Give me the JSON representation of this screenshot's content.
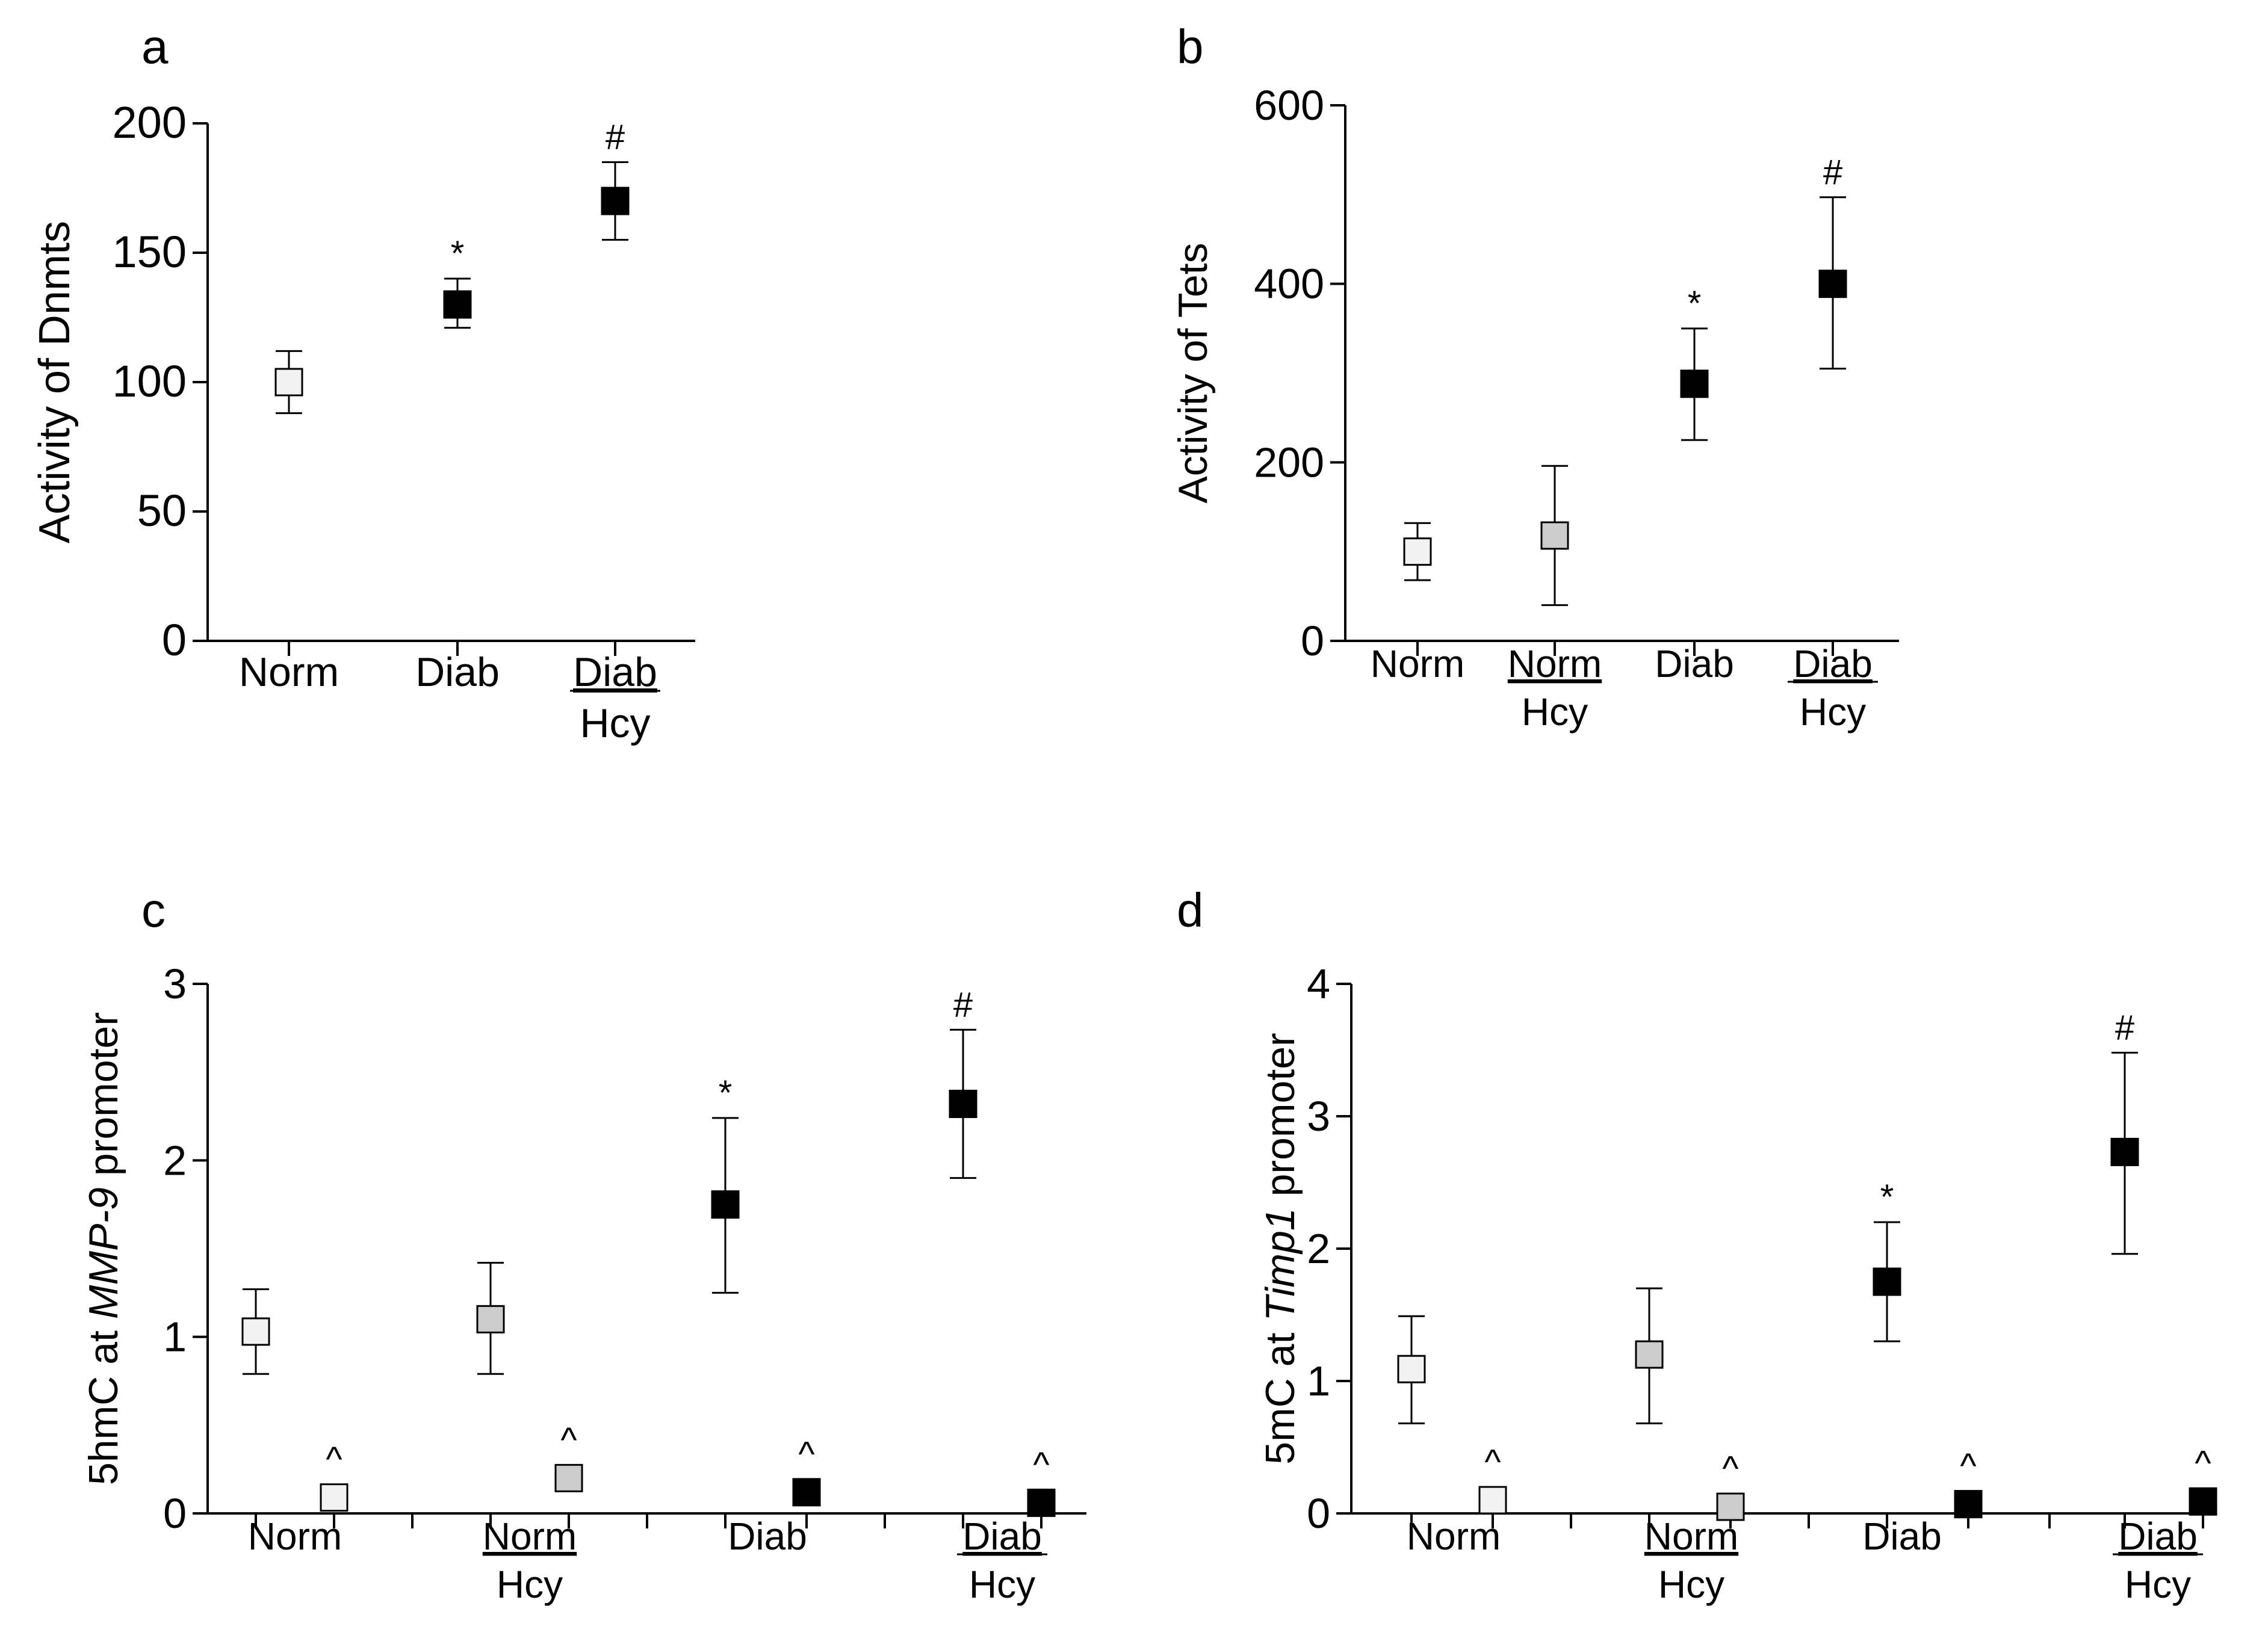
{
  "chart_data": [
    {
      "panel": "a",
      "type": "scatter",
      "ylabel": "Activity of Dnmts",
      "ylabel_italic": "",
      "ylabel_suffix": "",
      "ylim": [
        0,
        200
      ],
      "yticks": [
        0,
        50,
        100,
        150,
        200
      ],
      "groups": [
        {
          "line1": "Norm",
          "line2": "",
          "mean": 100,
          "err_low": 88,
          "err_high": 112,
          "fill": "#f2f2f2",
          "sig": ""
        },
        {
          "line1": "Diab",
          "line2": "",
          "mean": 130,
          "err_low": 121,
          "err_high": 140,
          "fill": "#000000",
          "sig": "*"
        },
        {
          "line1": "Diab",
          "line2": "Hcy",
          "mean": 170,
          "err_low": 155,
          "err_high": 185,
          "fill": "#000000",
          "sig": "#"
        }
      ]
    },
    {
      "panel": "b",
      "type": "scatter",
      "ylabel": "Activity of Tets",
      "ylabel_italic": "",
      "ylabel_suffix": "",
      "ylim": [
        0,
        600
      ],
      "yticks": [
        0,
        200,
        400,
        600
      ],
      "groups": [
        {
          "line1": "Norm",
          "line2": "",
          "mean": 100,
          "err_low": 68,
          "err_high": 132,
          "fill": "#f2f2f2",
          "sig": ""
        },
        {
          "line1": "Norm",
          "line2": "Hcy",
          "mean": 118,
          "err_low": 40,
          "err_high": 196,
          "fill": "#cccccc",
          "sig": ""
        },
        {
          "line1": "Diab",
          "line2": "",
          "mean": 288,
          "err_low": 225,
          "err_high": 350,
          "fill": "#000000",
          "sig": "*"
        },
        {
          "line1": "Diab",
          "line2": "Hcy",
          "mean": 400,
          "err_low": 305,
          "err_high": 497,
          "fill": "#000000",
          "sig": "#"
        }
      ]
    },
    {
      "panel": "c",
      "type": "scatter",
      "ylabel": "5hmC at ",
      "ylabel_italic": "MMP-9",
      "ylabel_suffix": " promoter",
      "ylim": [
        0,
        3
      ],
      "yticks": [
        0,
        1,
        2,
        3
      ],
      "groups": [
        {
          "line1": "Norm",
          "line2": "",
          "points": [
            {
              "mean": 1.03,
              "err_low": 0.79,
              "err_high": 1.27,
              "fill": "#f2f2f2",
              "sig": ""
            },
            {
              "mean": 0.09,
              "err_low": 0.09,
              "err_high": 0.09,
              "fill": "#f2f2f2",
              "sig": "^"
            }
          ]
        },
        {
          "line1": "Norm",
          "line2": "Hcy",
          "points": [
            {
              "mean": 1.1,
              "err_low": 0.79,
              "err_high": 1.42,
              "fill": "#cccccc",
              "sig": ""
            },
            {
              "mean": 0.2,
              "err_low": 0.2,
              "err_high": 0.2,
              "fill": "#cccccc",
              "sig": "^"
            }
          ]
        },
        {
          "line1": "Diab",
          "line2": "",
          "points": [
            {
              "mean": 1.75,
              "err_low": 1.25,
              "err_high": 2.24,
              "fill": "#000000",
              "sig": "*"
            },
            {
              "mean": 0.12,
              "err_low": 0.12,
              "err_high": 0.12,
              "fill": "#000000",
              "sig": "^"
            }
          ]
        },
        {
          "line1": "Diab",
          "line2": "Hcy",
          "points": [
            {
              "mean": 2.32,
              "err_low": 1.9,
              "err_high": 2.74,
              "fill": "#000000",
              "sig": "#"
            },
            {
              "mean": 0.06,
              "err_low": 0.06,
              "err_high": 0.06,
              "fill": "#000000",
              "sig": "^"
            }
          ]
        }
      ]
    },
    {
      "panel": "d",
      "type": "scatter",
      "ylabel": "5mC at ",
      "ylabel_italic": "Timp1",
      "ylabel_suffix": " promoter",
      "ylim": [
        0,
        4
      ],
      "yticks": [
        0,
        1,
        2,
        3,
        4
      ],
      "groups": [
        {
          "line1": "Norm",
          "line2": "",
          "points": [
            {
              "mean": 1.09,
              "err_low": 0.68,
              "err_high": 1.49,
              "fill": "#f2f2f2",
              "sig": ""
            },
            {
              "mean": 0.1,
              "err_low": 0.1,
              "err_high": 0.1,
              "fill": "#f2f2f2",
              "sig": "^"
            }
          ]
        },
        {
          "line1": "Norm",
          "line2": "Hcy",
          "points": [
            {
              "mean": 1.2,
              "err_low": 0.68,
              "err_high": 1.7,
              "fill": "#cccccc",
              "sig": ""
            },
            {
              "mean": 0.05,
              "err_low": 0.05,
              "err_high": 0.05,
              "fill": "#cccccc",
              "sig": "^"
            }
          ]
        },
        {
          "line1": "Diab",
          "line2": "",
          "points": [
            {
              "mean": 1.75,
              "err_low": 1.3,
              "err_high": 2.2,
              "fill": "#000000",
              "sig": "*"
            },
            {
              "mean": 0.07,
              "err_low": 0.07,
              "err_high": 0.07,
              "fill": "#000000",
              "sig": "^"
            }
          ]
        },
        {
          "line1": "Diab",
          "line2": "Hcy",
          "points": [
            {
              "mean": 2.73,
              "err_low": 1.96,
              "err_high": 3.48,
              "fill": "#000000",
              "sig": "#"
            },
            {
              "mean": 0.09,
              "err_low": 0.09,
              "err_high": 0.09,
              "fill": "#000000",
              "sig": "^"
            }
          ]
        }
      ]
    }
  ]
}
